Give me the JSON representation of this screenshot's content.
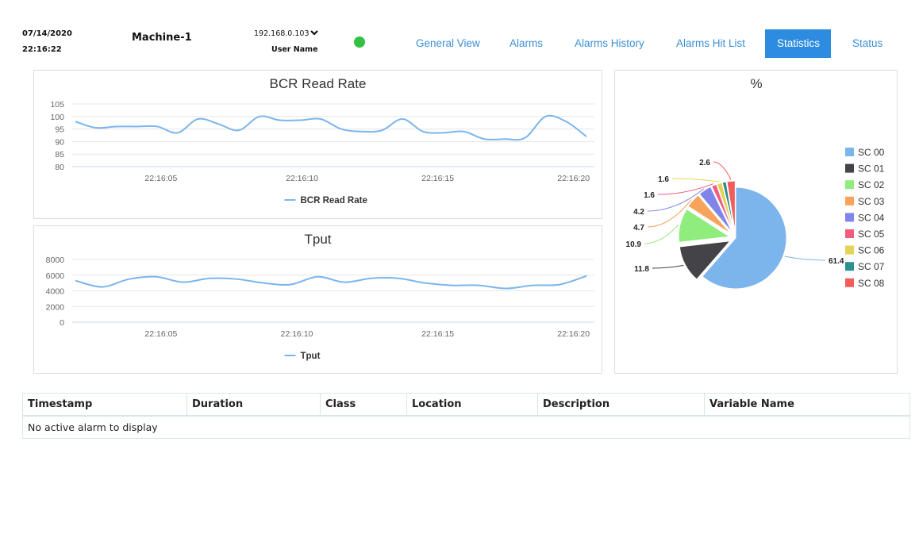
{
  "header": {
    "date": "07/14/2020",
    "time": "22:16:22",
    "machine": "Machine-1",
    "ip": "192.168.0.103",
    "user": "User Name",
    "status_color": "#33c142"
  },
  "nav": {
    "items": [
      "General View",
      "Alarms",
      "Alarms History",
      "Alarms Hit List",
      "Statistics",
      "Status"
    ],
    "active": "Statistics"
  },
  "chart_data": [
    {
      "type": "line",
      "title": "BCR Read Rate",
      "series": [
        {
          "name": "BCR Read Rate",
          "color": "#7cb5ec",
          "values": [
            98,
            95.5,
            96,
            96,
            96,
            93.5,
            99,
            97,
            94.5,
            100,
            98.5,
            98.5,
            99,
            95,
            94,
            94.5,
            99,
            94,
            93.5,
            94,
            91,
            91,
            91.5,
            100,
            98,
            92
          ]
        }
      ],
      "xticks": [
        "22:16:05",
        "22:16:10",
        "22:16:15",
        "22:16:20"
      ],
      "yticks": [
        80,
        85,
        90,
        95,
        100,
        105
      ],
      "ylim": [
        80,
        105
      ],
      "legend": "bottom-center",
      "grid": true
    },
    {
      "type": "line",
      "title": "Tput",
      "series": [
        {
          "name": "Tput",
          "color": "#7cb5ec",
          "values": [
            5300,
            4500,
            5500,
            5800,
            5100,
            5600,
            5500,
            5000,
            4800,
            5800,
            5100,
            5600,
            5600,
            5000,
            4700,
            4700,
            4300,
            4700,
            4800,
            5900
          ]
        }
      ],
      "xticks": [
        "22:16:05",
        "22:16:10",
        "22:16:15",
        "22:16:20"
      ],
      "yticks": [
        0,
        2000,
        4000,
        6000,
        8000
      ],
      "ylim": [
        0,
        8000
      ],
      "legend": "bottom-center",
      "grid": true
    },
    {
      "type": "pie",
      "title": "%",
      "slices": [
        {
          "name": "SC 00",
          "value": 61.4,
          "color": "#7cb5ec"
        },
        {
          "name": "SC 01",
          "value": 11.8,
          "color": "#434348"
        },
        {
          "name": "SC 02",
          "value": 10.9,
          "color": "#90ed7d"
        },
        {
          "name": "SC 03",
          "value": 4.7,
          "color": "#f7a35c"
        },
        {
          "name": "SC 04",
          "value": 4.2,
          "color": "#8085e9"
        },
        {
          "name": "SC 05",
          "value": 1.6,
          "color": "#f15c80"
        },
        {
          "name": "SC 06",
          "value": 1.6,
          "color": "#e4d354"
        },
        {
          "name": "SC 07",
          "value": 1.2,
          "color": "#2b908f"
        },
        {
          "name": "SC 08",
          "value": 2.6,
          "color": "#f45b5b"
        }
      ],
      "data_labels": [
        "61.4",
        "11.8",
        "10.9",
        "4.7",
        "4.2",
        "1.6",
        "1.6",
        "2.6"
      ],
      "legend": "right"
    }
  ],
  "table": {
    "columns": [
      "Timestamp",
      "Duration",
      "Class",
      "Location",
      "Description",
      "Variable Name"
    ],
    "empty_message": "No active alarm to display"
  }
}
